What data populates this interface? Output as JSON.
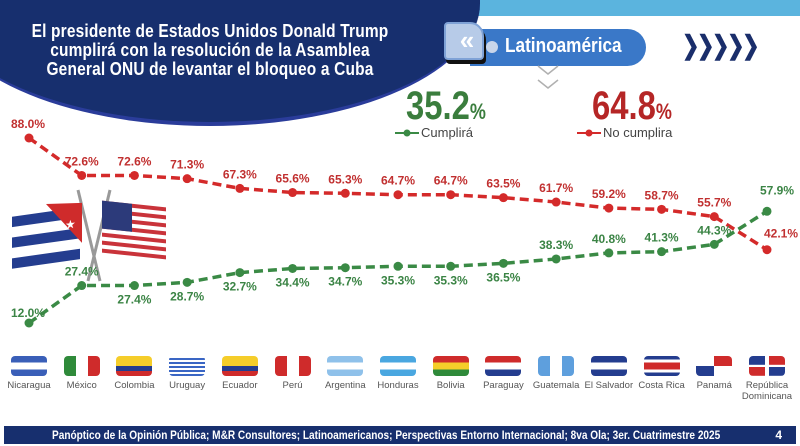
{
  "header": {
    "title": "El presidente de Estados Unidos Donald Trump cumplirá con la resolución de la Asamblea General ONU de levantar el bloqueo a Cuba",
    "region_label": "Latinoamérica",
    "back_icon": "double-chevron-left-icon",
    "forward_icon": "chevrons-right-icon",
    "forward_glyph": "❯❯❯❯❯",
    "back_glyph": "«"
  },
  "summary": {
    "cumplira_value": "35.2",
    "cumplira_pct": "%",
    "cumplira_label": "Cumplirá",
    "no_cumplira_value": "64.8",
    "no_cumplira_pct": "%",
    "no_cumplira_label": "No cumplira"
  },
  "colors": {
    "green": "#3a8a45",
    "red": "#d42a2a",
    "navy": "#172f6e",
    "accent_blue": "#3a78c8"
  },
  "chart_data": {
    "type": "line",
    "title": "El presidente de Estados Unidos Donald Trump cumplirá con la resolución de la Asamblea General ONU de levantar el bloqueo a Cuba",
    "xlabel": "",
    "ylabel": "",
    "ylim": [
      0,
      100
    ],
    "grid": false,
    "legend": "top-center",
    "categories": [
      "Nicaragua",
      "México",
      "Colombia",
      "Uruguay",
      "Ecuador",
      "Perú",
      "Argentina",
      "Honduras",
      "Bolivia",
      "Paraguay",
      "Guatemala",
      "El Salvador",
      "Costa Rica",
      "Panamá",
      "República Dominicana"
    ],
    "series": [
      {
        "name": "No cumplira",
        "color": "#d42a2a",
        "values": [
          88.0,
          72.6,
          72.6,
          71.3,
          67.3,
          65.6,
          65.3,
          64.7,
          64.7,
          63.5,
          61.7,
          59.2,
          58.7,
          55.7,
          42.1
        ],
        "labels": [
          "88.0%",
          "72.6%",
          "72.6%",
          "71.3%",
          "67.3%",
          "65.6%",
          "65.3%",
          "64.7%",
          "64.7%",
          "63.5%",
          "61.7%",
          "59.2%",
          "58.7%",
          "55.7%",
          "42.1%"
        ]
      },
      {
        "name": "Cumplirá",
        "color": "#3a8a45",
        "values": [
          12.0,
          27.4,
          27.4,
          28.7,
          32.7,
          34.4,
          34.7,
          35.3,
          35.3,
          36.5,
          38.3,
          40.8,
          41.3,
          44.3,
          57.9
        ],
        "labels": [
          "12.0%",
          "27.4%",
          "27.4%",
          "28.7%",
          "32.7%",
          "34.4%",
          "34.7%",
          "35.3%",
          "35.3%",
          "36.5%",
          "38.3%",
          "40.8%",
          "41.3%",
          "44.3%",
          "57.9%"
        ]
      }
    ]
  },
  "countries": [
    {
      "name": "Nicaragua",
      "name2": ""
    },
    {
      "name": "México",
      "name2": ""
    },
    {
      "name": "Colombia",
      "name2": ""
    },
    {
      "name": "Uruguay",
      "name2": ""
    },
    {
      "name": "Ecuador",
      "name2": ""
    },
    {
      "name": "Perú",
      "name2": ""
    },
    {
      "name": "Argentina",
      "name2": ""
    },
    {
      "name": "Honduras",
      "name2": ""
    },
    {
      "name": "Bolivia",
      "name2": ""
    },
    {
      "name": "Paraguay",
      "name2": ""
    },
    {
      "name": "Guatemala",
      "name2": ""
    },
    {
      "name": "El Salvador",
      "name2": ""
    },
    {
      "name": "Costa Rica",
      "name2": ""
    },
    {
      "name": "Panamá",
      "name2": ""
    },
    {
      "name": "República",
      "name2": "Dominicana"
    }
  ],
  "footer": {
    "source": "Panóptico de la Opinión Pública; M&R Consultores; Latinoamericanos; Perspectivas Entorno Internacional; 8va Ola; 3er. Cuatrimestre 2025",
    "page_number": "4"
  }
}
